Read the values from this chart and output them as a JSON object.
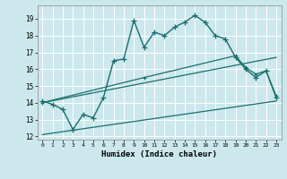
{
  "xlabel": "Humidex (Indice chaleur)",
  "xlim": [
    -0.5,
    23.5
  ],
  "ylim": [
    11.8,
    19.8
  ],
  "yticks": [
    12,
    13,
    14,
    15,
    16,
    17,
    18,
    19
  ],
  "xticks": [
    0,
    1,
    2,
    3,
    4,
    5,
    6,
    7,
    8,
    9,
    10,
    11,
    12,
    13,
    14,
    15,
    16,
    17,
    18,
    19,
    20,
    21,
    22,
    23
  ],
  "bg_color": "#cce8ec",
  "grid_color": "#b0d4d8",
  "line_color": "#1a6e6e",
  "line1_x": [
    0,
    1,
    2,
    3,
    4,
    5,
    6,
    7,
    8,
    9,
    10,
    11,
    12,
    13,
    14,
    15,
    16,
    17,
    18,
    19,
    20,
    21,
    22,
    23
  ],
  "line1_y": [
    14.1,
    13.9,
    13.6,
    12.4,
    13.3,
    13.1,
    14.3,
    16.5,
    16.6,
    18.9,
    17.3,
    18.2,
    18.0,
    18.5,
    18.8,
    19.2,
    18.8,
    18.0,
    17.8,
    16.7,
    16.0,
    15.5,
    15.9,
    14.3
  ],
  "line2_x": [
    0,
    10,
    19,
    20,
    21,
    22,
    23
  ],
  "line2_y": [
    14.0,
    15.5,
    16.8,
    16.1,
    15.7,
    15.9,
    14.4
  ],
  "line3_x": [
    0,
    23
  ],
  "line3_y": [
    14.0,
    16.7
  ],
  "line4_x": [
    0,
    23
  ],
  "line4_y": [
    12.1,
    14.1
  ]
}
